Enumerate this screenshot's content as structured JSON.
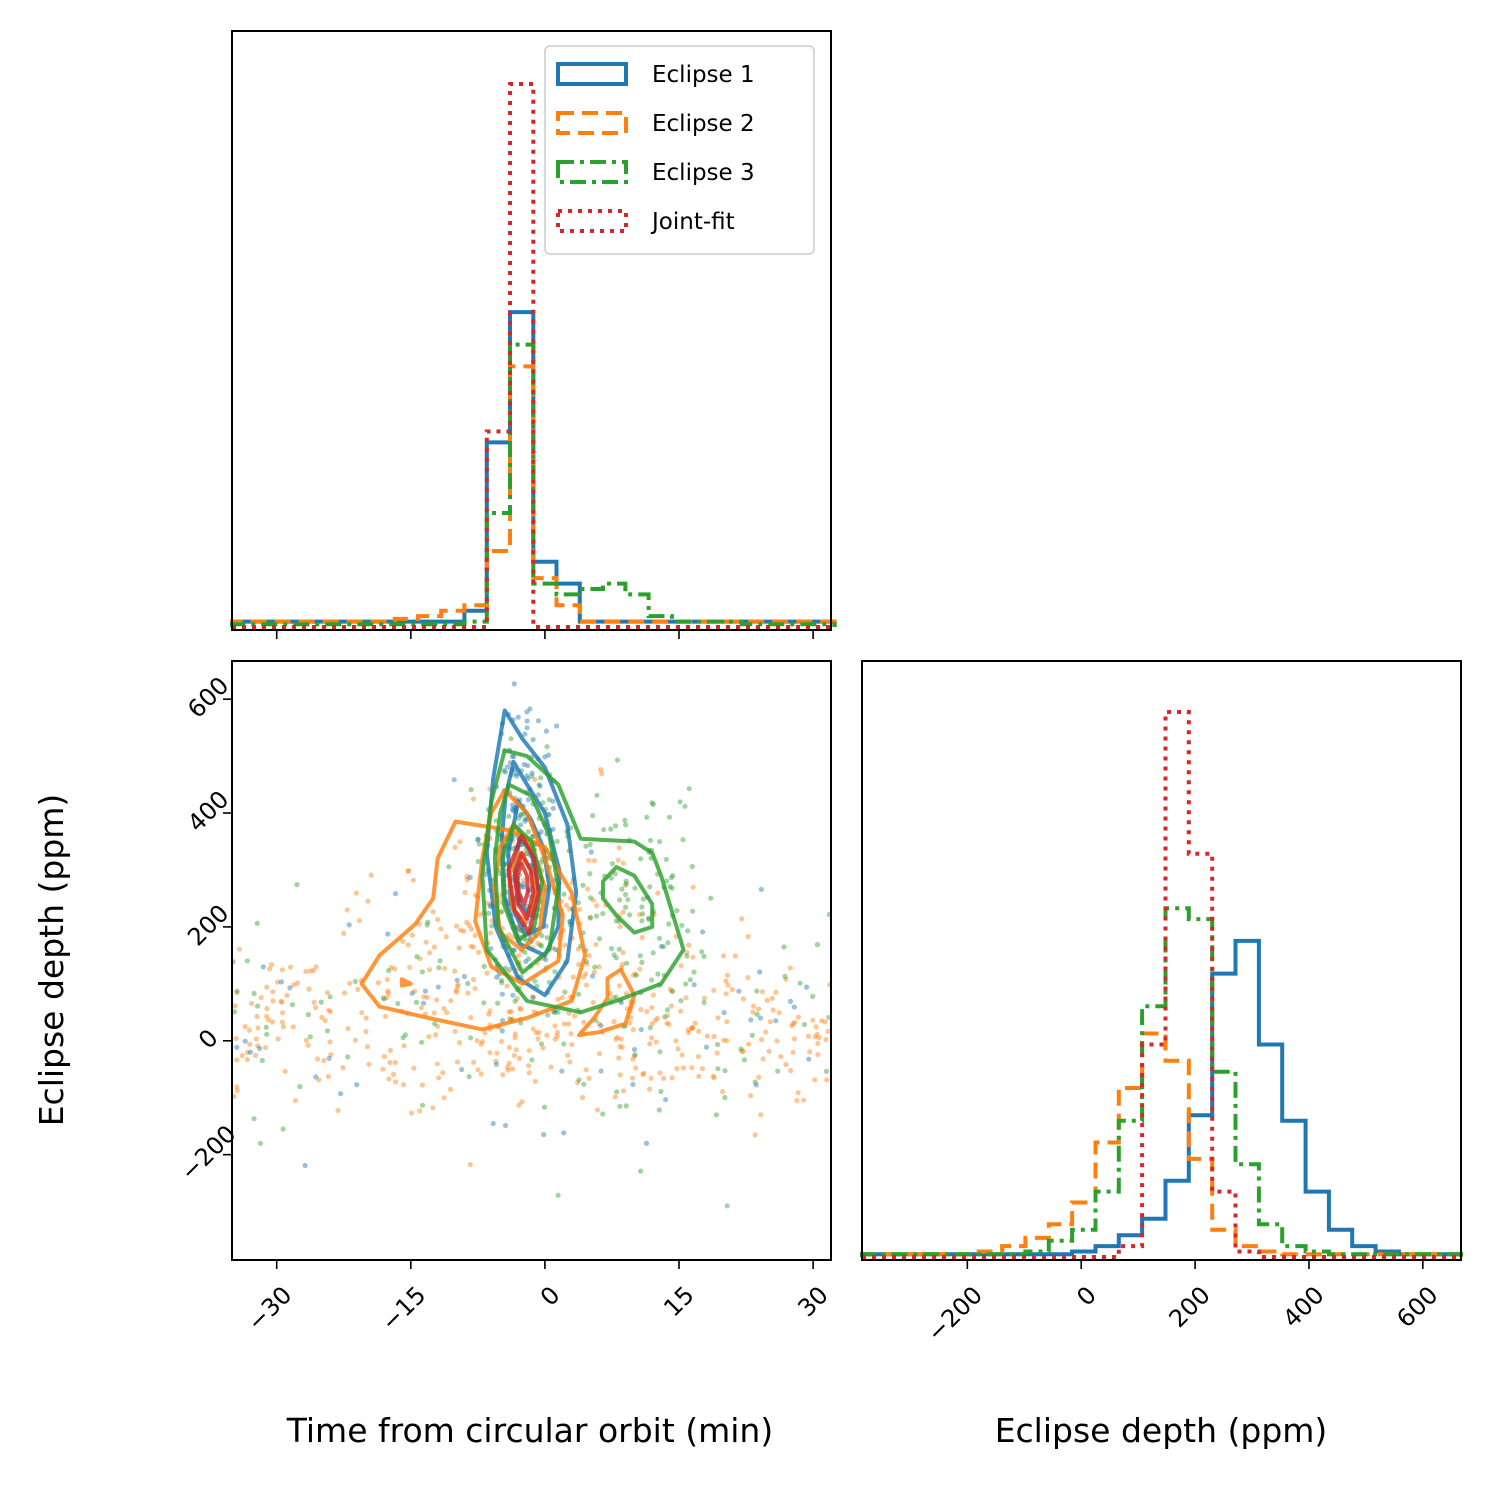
{
  "colors": {
    "e1": "#1f77b4",
    "e2": "#ff7f0e",
    "e3": "#2ca02c",
    "joint": "#d62728"
  },
  "chart_data": {
    "type": "corner",
    "xlabel_left": "Time from circular orbit (min)",
    "xlabel_right": "Eclipse depth (ppm)",
    "ylabel": "Eclipse depth (ppm)",
    "legend": [
      "Eclipse 1",
      "Eclipse 2",
      "Eclipse 3",
      "Joint-fit"
    ],
    "time_range": [
      -35,
      32
    ],
    "depth_range": [
      -385,
      667
    ],
    "time_ticks": [
      -30,
      -15,
      0,
      15,
      30
    ],
    "time_tick_labels": [
      "−30",
      "−15",
      "0",
      "15",
      "30"
    ],
    "depth_ticks": [
      -200,
      0,
      200,
      400,
      600
    ],
    "depth_tick_labels": [
      "−200",
      "0",
      "200",
      "400",
      "600"
    ],
    "time_hist": {
      "bin_edges": [
        -35,
        -32.4,
        -29.8,
        -27.2,
        -24.6,
        -22,
        -19.4,
        -16.8,
        -14.2,
        -11.6,
        -9,
        -6.5,
        -3.9,
        -1.3,
        1.3,
        3.9,
        6.5,
        9,
        11.6,
        14.2,
        16.8,
        19.4,
        22,
        24.6,
        27.2,
        29.8,
        32.4
      ],
      "series": [
        {
          "name": "Eclipse 1",
          "values": [
            0.01,
            0.01,
            0.01,
            0.01,
            0.01,
            0.01,
            0.01,
            0.01,
            0.01,
            0.01,
            0.03,
            0.34,
            0.58,
            0.12,
            0.08,
            0.01,
            0.01,
            0.01,
            0.01,
            0.01,
            0.01,
            0.01,
            0.01,
            0.01,
            0.01,
            0.01
          ]
        },
        {
          "name": "Eclipse 2",
          "values": [
            0.01,
            0.01,
            0.01,
            0.01,
            0.01,
            0.01,
            0.01,
            0.015,
            0.02,
            0.03,
            0.04,
            0.14,
            0.48,
            0.09,
            0.04,
            0.01,
            0.01,
            0.01,
            0.01,
            0.01,
            0.01,
            0.01,
            0.01,
            0.01,
            0.01,
            0.01
          ]
        },
        {
          "name": "Eclipse 3",
          "values": [
            0.005,
            0.005,
            0.005,
            0.005,
            0.005,
            0.005,
            0.005,
            0.005,
            0.005,
            0.005,
            0.01,
            0.21,
            0.52,
            0.08,
            0.06,
            0.07,
            0.08,
            0.06,
            0.02,
            0.01,
            0.01,
            0.01,
            0.005,
            0.005,
            0.005,
            0.005
          ]
        },
        {
          "name": "Joint-fit",
          "values": [
            0,
            0,
            0,
            0,
            0,
            0,
            0,
            0,
            0,
            0,
            0,
            0.36,
            1.0,
            0,
            0,
            0,
            0,
            0,
            0,
            0,
            0,
            0,
            0,
            0,
            0,
            0
          ]
        }
      ]
    },
    "depth_hist": {
      "bin_edges": [
        -385,
        -344,
        -303,
        -262,
        -221,
        -180,
        -139,
        -98,
        -57,
        -16,
        25,
        66,
        107,
        148,
        189,
        230,
        271,
        312,
        353,
        394,
        435,
        476,
        517,
        558,
        599,
        640,
        667
      ],
      "series": [
        {
          "name": "Eclipse 1",
          "values": [
            0.005,
            0.005,
            0.005,
            0.005,
            0.005,
            0.005,
            0.005,
            0.005,
            0.005,
            0.01,
            0.02,
            0.04,
            0.07,
            0.14,
            0.26,
            0.52,
            0.58,
            0.39,
            0.25,
            0.12,
            0.05,
            0.02,
            0.01,
            0.005,
            0.005,
            0.005
          ]
        },
        {
          "name": "Eclipse 2",
          "values": [
            0.005,
            0.005,
            0.005,
            0.005,
            0.005,
            0.01,
            0.02,
            0.035,
            0.06,
            0.1,
            0.21,
            0.31,
            0.41,
            0.36,
            0.18,
            0.05,
            0.02,
            0.01,
            0.005,
            0.005,
            0.005,
            0.005,
            0.005,
            0.005,
            0.005,
            0.005
          ]
        },
        {
          "name": "Eclipse 3",
          "values": [
            0.005,
            0.005,
            0.005,
            0.005,
            0.005,
            0.005,
            0.005,
            0.01,
            0.03,
            0.05,
            0.12,
            0.25,
            0.46,
            0.64,
            0.62,
            0.34,
            0.17,
            0.06,
            0.02,
            0.01,
            0.005,
            0.005,
            0.005,
            0.005,
            0.005,
            0.005
          ]
        },
        {
          "name": "Joint-fit",
          "values": [
            0,
            0,
            0,
            0,
            0,
            0,
            0,
            0,
            0,
            0,
            0,
            0.02,
            0.39,
            1.0,
            0.74,
            0.12,
            0.01,
            0,
            0,
            0,
            0,
            0,
            0,
            0,
            0,
            0
          ]
        }
      ]
    },
    "contours": [
      {
        "name": "Eclipse 1",
        "levels": [
          [
            [
              -4.5,
              580
            ],
            [
              -2.5,
              530
            ],
            [
              0,
              480
            ],
            [
              2.5,
              380
            ],
            [
              3.5,
              260
            ],
            [
              2.5,
              140
            ],
            [
              0,
              80
            ],
            [
              -3,
              110
            ],
            [
              -5.5,
              200
            ],
            [
              -6.5,
              330
            ],
            [
              -5.8,
              460
            ]
          ],
          [
            [
              -3.5,
              490
            ],
            [
              -2,
              450
            ],
            [
              0,
              400
            ],
            [
              1.6,
              300
            ],
            [
              1.5,
              200
            ],
            [
              0,
              150
            ],
            [
              -2.8,
              170
            ],
            [
              -4.5,
              250
            ],
            [
              -4.8,
              360
            ],
            [
              -4.4,
              430
            ]
          ],
          [
            [
              -3,
              420
            ],
            [
              -1.6,
              390
            ],
            [
              -0.2,
              340
            ],
            [
              0.5,
              270
            ],
            [
              -0.2,
              200
            ],
            [
              -2.2,
              185
            ],
            [
              -3.8,
              240
            ],
            [
              -4.1,
              330
            ]
          ],
          [
            [
              -2.8,
              360
            ],
            [
              -1.5,
              330
            ],
            [
              -0.8,
              270
            ],
            [
              -1.6,
              220
            ],
            [
              -2.8,
              240
            ],
            [
              -3.4,
              300
            ]
          ]
        ]
      },
      {
        "name": "Eclipse 2",
        "levels": [
          [
            [
              -10,
              385
            ],
            [
              -4,
              370
            ],
            [
              0,
              340
            ],
            [
              3,
              260
            ],
            [
              4.5,
              150
            ],
            [
              3,
              70
            ],
            [
              -2,
              40
            ],
            [
              -7,
              20
            ],
            [
              -13,
              40
            ],
            [
              -18.5,
              60
            ],
            [
              -20.5,
              100
            ],
            [
              -18.5,
              150
            ],
            [
              -14.5,
              205
            ],
            [
              -12.5,
              250
            ],
            [
              -12,
              320
            ]
          ],
          [
            [
              -4.5,
              440
            ],
            [
              -2,
              400
            ],
            [
              0,
              320
            ],
            [
              2,
              220
            ],
            [
              1.5,
              140
            ],
            [
              -2.5,
              100
            ],
            [
              -6,
              130
            ],
            [
              -7.8,
              210
            ],
            [
              -7,
              320
            ],
            [
              -6,
              400
            ]
          ],
          [
            [
              -3.5,
              380
            ],
            [
              -1.5,
              340
            ],
            [
              0,
              270
            ],
            [
              -0.6,
              190
            ],
            [
              -2.6,
              160
            ],
            [
              -5,
              190
            ],
            [
              -5.7,
              270
            ],
            [
              -5,
              340
            ]
          ],
          [
            [
              -3,
              330
            ],
            [
              -1.5,
              300
            ],
            [
              -1,
              250
            ],
            [
              -2.2,
              210
            ],
            [
              -3.6,
              230
            ],
            [
              -4,
              290
            ]
          ],
          [
            [
              -16,
              108
            ],
            [
              -15,
              100
            ],
            [
              -16,
              97
            ]
          ],
          [
            [
              8.5,
              125
            ],
            [
              10,
              80
            ],
            [
              9,
              30
            ],
            [
              6,
              15
            ],
            [
              3.8,
              10
            ],
            [
              5.5,
              40
            ],
            [
              7,
              75
            ],
            [
              7,
              110
            ]
          ]
        ]
      },
      {
        "name": "Eclipse 3",
        "levels": [
          [
            [
              -4.5,
              510
            ],
            [
              -2,
              500
            ],
            [
              1.5,
              450
            ],
            [
              4,
              355
            ],
            [
              10,
              350
            ],
            [
              12,
              330
            ],
            [
              13,
              290
            ],
            [
              15.5,
              160
            ],
            [
              13,
              100
            ],
            [
              8,
              70
            ],
            [
              4,
              50
            ],
            [
              -2,
              70
            ],
            [
              -6.5,
              160
            ],
            [
              -7,
              290
            ],
            [
              -6,
              420
            ]
          ],
          [
            [
              -4,
              450
            ],
            [
              -1.5,
              430
            ],
            [
              0.5,
              360
            ],
            [
              1.5,
              270
            ],
            [
              0.5,
              160
            ],
            [
              -2.5,
              120
            ],
            [
              -5.2,
              200
            ],
            [
              -5.6,
              320
            ],
            [
              -5,
              400
            ]
          ],
          [
            [
              -3.5,
              380
            ],
            [
              -1.5,
              350
            ],
            [
              -0.3,
              280
            ],
            [
              -1.2,
              200
            ],
            [
              -3,
              175
            ],
            [
              -4.6,
              240
            ],
            [
              -4.8,
              320
            ]
          ],
          [
            [
              6.5,
              280
            ],
            [
              8,
              305
            ],
            [
              10,
              290
            ],
            [
              12,
              240
            ],
            [
              12,
              200
            ],
            [
              10,
              190
            ],
            [
              8,
              220
            ],
            [
              6.5,
              250
            ]
          ]
        ]
      },
      {
        "name": "Joint-fit",
        "levels": [
          [
            [
              -2.6,
              360
            ],
            [
              -1.2,
              320
            ],
            [
              -0.7,
              260
            ],
            [
              -1.8,
              190
            ],
            [
              -3.4,
              230
            ],
            [
              -4.1,
              300
            ]
          ],
          [
            [
              -2.6,
              330
            ],
            [
              -1.6,
              300
            ],
            [
              -1.3,
              260
            ],
            [
              -2,
              215
            ],
            [
              -3,
              240
            ],
            [
              -3.4,
              290
            ]
          ],
          [
            [
              -2.6,
              310
            ],
            [
              -2,
              290
            ],
            [
              -1.9,
              262
            ],
            [
              -2.3,
              240
            ],
            [
              -2.9,
              258
            ],
            [
              -3.1,
              290
            ]
          ]
        ]
      }
    ]
  }
}
